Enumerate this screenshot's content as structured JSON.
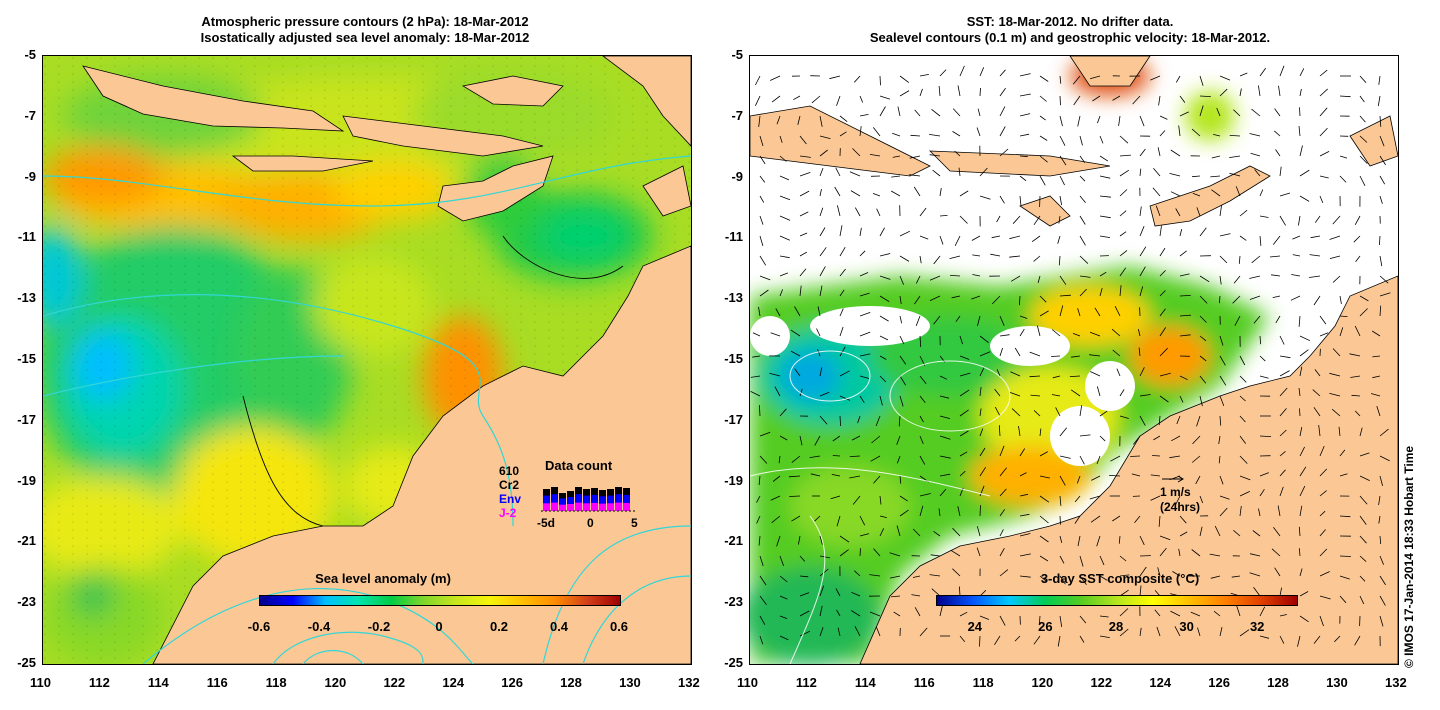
{
  "left_panel": {
    "title_line1": "Atmospheric pressure contours (2 hPa): 18-Mar-2012",
    "title_line2": "Isostatically adjusted sea level anomaly: 18-Mar-2012",
    "colorbar": {
      "title": "Sea level anomaly (m)",
      "labels": [
        "-0.6",
        "-0.4",
        "-0.2",
        "0",
        "0.2",
        "0.4",
        "0.6"
      ],
      "range": [
        -0.6,
        0.6
      ]
    },
    "data_count": {
      "title": "Data count",
      "top_value": "610",
      "missions": [
        {
          "name": "Cr2",
          "color": "#000000"
        },
        {
          "name": "Env",
          "color": "#0000ff"
        },
        {
          "name": "J-2",
          "color": "#ff00ff"
        }
      ],
      "axis_labels": [
        "-5d",
        "0",
        "5"
      ]
    }
  },
  "right_panel": {
    "title_line1": "SST: 18-Mar-2012. No drifter data.",
    "title_line2": "Sealevel contours (0.1 m) and geostrophic velocity: 18-Mar-2012.",
    "colorbar": {
      "title": "3-day SST composite (°C)",
      "labels": [
        "24",
        "26",
        "28",
        "30",
        "32"
      ],
      "range": [
        22.9,
        33.1
      ]
    },
    "velocity_ref": {
      "line1": "1 m/s",
      "line2": "(24hrs)"
    }
  },
  "axes": {
    "lon_labels": [
      "110",
      "112",
      "114",
      "116",
      "118",
      "120",
      "122",
      "124",
      "126",
      "128",
      "130",
      "132"
    ],
    "lat_labels": [
      "-5",
      "-7",
      "-9",
      "-11",
      "-13",
      "-15",
      "-17",
      "-19",
      "-21",
      "-23",
      "-25"
    ],
    "lon_range": [
      110,
      132
    ],
    "lat_range": [
      -25,
      -5
    ]
  },
  "copyright": "© IMOS 17-Jan-2014 18:33 Hobart Time",
  "colors": {
    "land": "#fbc895",
    "coast": "#000000",
    "contour_cyan": "#33d6d6",
    "sla_scale": [
      "#00008b",
      "#0000ff",
      "#00bfff",
      "#00e5b0",
      "#00cc44",
      "#7fd62b",
      "#c8e61e",
      "#f5f50a",
      "#ffc000",
      "#ff8c00",
      "#d2401a",
      "#a00000"
    ],
    "sst_scale": [
      "#00008b",
      "#0055ff",
      "#00c8ff",
      "#00cc55",
      "#55cc22",
      "#b4e61e",
      "#ffff00",
      "#ffc000",
      "#ff8000",
      "#e04000",
      "#a00000"
    ]
  }
}
